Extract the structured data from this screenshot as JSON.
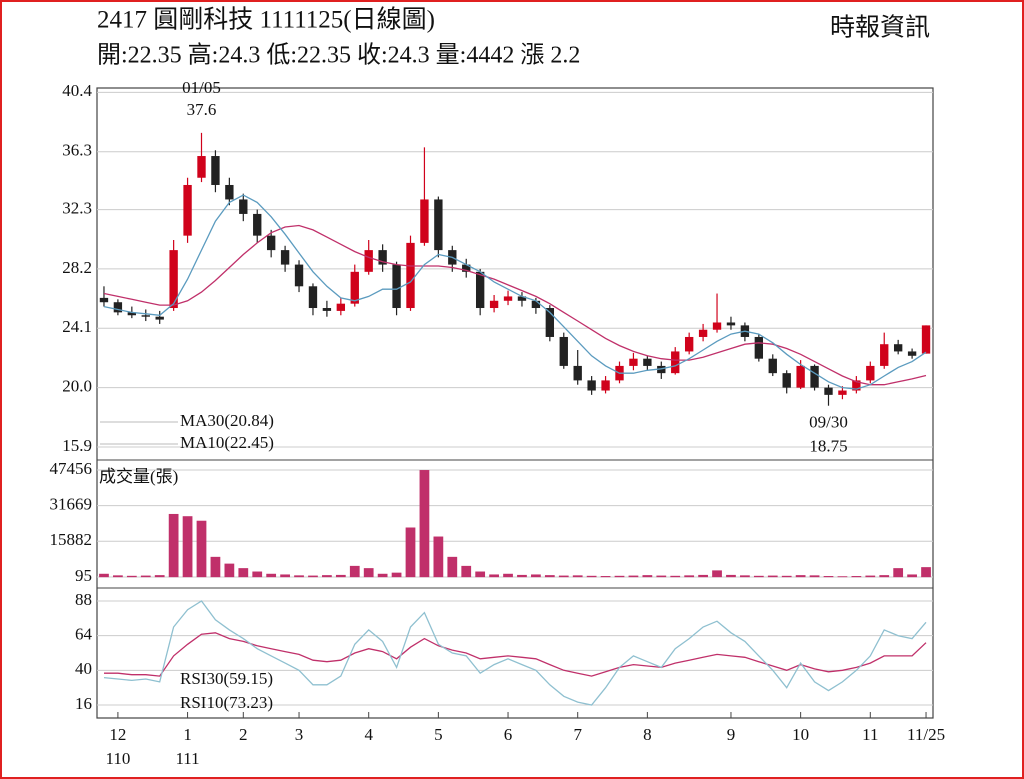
{
  "chart_data": [
    {
      "type": "candlestick",
      "title": "2417  圓剛科技 1111125(日線圖)",
      "subtitle": "開:22.35 高:24.3 低:22.35 收:24.3 量:4442 漲 2.2",
      "source": "時報資訊",
      "xlim": [
        -0.5,
        59.5
      ],
      "ylim": [
        15.0,
        40.7
      ],
      "yticks": [
        15.9,
        {
          "value": 20,
          "label": "20.0"
        },
        24.1,
        28.2,
        32.3,
        36.3,
        40.4
      ],
      "grid": true,
      "up_color": "#d0021b",
      "down_color": "#222222",
      "candles": [
        [
          26.2,
          27.0,
          25.6,
          25.9
        ],
        [
          25.9,
          26.1,
          25.0,
          25.2
        ],
        [
          25.2,
          25.6,
          24.8,
          25.0
        ],
        [
          25.0,
          25.4,
          24.6,
          24.9
        ],
        [
          24.9,
          25.3,
          24.4,
          24.7
        ],
        [
          25.5,
          30.2,
          25.3,
          29.5
        ],
        [
          30.5,
          34.5,
          30.0,
          34.0
        ],
        [
          34.5,
          37.6,
          34.2,
          36.0
        ],
        [
          36.0,
          36.4,
          33.5,
          34.0
        ],
        [
          34.0,
          34.5,
          32.6,
          33.0
        ],
        [
          33.0,
          33.4,
          31.5,
          32.0
        ],
        [
          32.0,
          32.3,
          30.0,
          30.5
        ],
        [
          30.5,
          30.9,
          29.0,
          29.5
        ],
        [
          29.5,
          29.8,
          28.0,
          28.5
        ],
        [
          28.5,
          28.8,
          26.6,
          27.0
        ],
        [
          27.0,
          27.2,
          25.0,
          25.5
        ],
        [
          25.5,
          26.0,
          24.9,
          25.3
        ],
        [
          25.3,
          26.2,
          25.0,
          25.8
        ],
        [
          25.8,
          28.5,
          25.6,
          28.0
        ],
        [
          28.0,
          30.2,
          27.8,
          29.5
        ],
        [
          29.5,
          29.9,
          28.0,
          28.5
        ],
        [
          28.5,
          28.7,
          25.0,
          25.5
        ],
        [
          25.5,
          30.5,
          25.3,
          30.0
        ],
        [
          30.0,
          36.6,
          29.8,
          33.0
        ],
        [
          33.0,
          33.2,
          29.0,
          29.5
        ],
        [
          29.5,
          29.8,
          28.0,
          28.5
        ],
        [
          28.5,
          28.9,
          27.6,
          28.0
        ],
        [
          28.0,
          28.2,
          25.0,
          25.5
        ],
        [
          25.5,
          26.4,
          25.2,
          26.0
        ],
        [
          26.0,
          26.7,
          25.7,
          26.3
        ],
        [
          26.3,
          26.6,
          25.6,
          26.0
        ],
        [
          26.0,
          26.2,
          25.1,
          25.5
        ],
        [
          25.5,
          25.7,
          23.2,
          23.5
        ],
        [
          23.5,
          23.8,
          21.3,
          21.5
        ],
        [
          21.5,
          22.6,
          20.2,
          20.5
        ],
        [
          20.5,
          20.8,
          19.5,
          19.8
        ],
        [
          19.8,
          20.8,
          19.6,
          20.5
        ],
        [
          20.5,
          21.8,
          20.3,
          21.5
        ],
        [
          21.5,
          22.4,
          21.2,
          22.0
        ],
        [
          22.0,
          22.2,
          21.2,
          21.5
        ],
        [
          21.5,
          21.8,
          20.6,
          21.0
        ],
        [
          21.0,
          22.8,
          20.9,
          22.5
        ],
        [
          22.5,
          23.8,
          22.3,
          23.5
        ],
        [
          23.5,
          24.4,
          23.2,
          24.0
        ],
        [
          24.0,
          26.5,
          23.8,
          24.5
        ],
        [
          24.5,
          24.9,
          24.0,
          24.3
        ],
        [
          24.3,
          24.5,
          23.2,
          23.5
        ],
        [
          23.5,
          23.7,
          21.8,
          22.0
        ],
        [
          22.0,
          22.3,
          20.8,
          21.0
        ],
        [
          21.0,
          21.2,
          19.6,
          20.0
        ],
        [
          20.0,
          21.9,
          19.9,
          21.5
        ],
        [
          21.5,
          21.6,
          19.8,
          20.0
        ],
        [
          20.0,
          20.2,
          18.75,
          19.5
        ],
        [
          19.5,
          20.1,
          19.2,
          19.8
        ],
        [
          19.8,
          20.8,
          19.6,
          20.5
        ],
        [
          20.5,
          21.8,
          20.3,
          21.5
        ],
        [
          21.5,
          23.8,
          21.3,
          23.0
        ],
        [
          23.0,
          23.3,
          22.3,
          22.5
        ],
        [
          22.5,
          22.7,
          22.0,
          22.2
        ],
        [
          22.35,
          24.3,
          22.35,
          24.3
        ]
      ],
      "series": [
        {
          "name": "MA30(20.84)",
          "color": "#c0306a",
          "values": [
            26.5,
            26.3,
            26.1,
            25.9,
            25.7,
            25.7,
            26.0,
            26.6,
            27.4,
            28.3,
            29.2,
            30.0,
            30.7,
            31.1,
            31.2,
            30.9,
            30.4,
            29.9,
            29.4,
            29.0,
            28.7,
            28.5,
            28.4,
            28.4,
            28.4,
            28.3,
            28.1,
            27.8,
            27.5,
            27.1,
            26.7,
            26.3,
            25.8,
            25.2,
            24.6,
            24.0,
            23.4,
            22.9,
            22.5,
            22.2,
            22.0,
            21.9,
            21.9,
            22.1,
            22.4,
            22.7,
            23.0,
            23.1,
            23.0,
            22.7,
            22.3,
            21.8,
            21.3,
            20.8,
            20.4,
            20.2,
            20.2,
            20.4,
            20.6,
            20.84
          ]
        },
        {
          "name": "MA10(22.45)",
          "color": "#5b9bbf",
          "values": [
            25.6,
            25.4,
            25.2,
            25.1,
            25.0,
            25.8,
            27.5,
            29.5,
            31.5,
            32.8,
            33.3,
            32.8,
            31.8,
            30.6,
            29.3,
            28.0,
            27.0,
            26.2,
            26.0,
            26.3,
            26.8,
            26.8,
            27.3,
            28.5,
            29.2,
            29.0,
            28.5,
            28.0,
            27.3,
            26.8,
            26.3,
            26.0,
            25.2,
            24.2,
            23.2,
            22.2,
            21.5,
            21.0,
            21.0,
            21.2,
            21.3,
            21.5,
            22.0,
            22.6,
            23.2,
            23.7,
            23.9,
            23.7,
            23.1,
            22.3,
            21.6,
            21.0,
            20.4,
            20.0,
            19.9,
            20.2,
            20.8,
            21.4,
            21.8,
            22.45
          ]
        }
      ],
      "high_annotation": {
        "date": "01/05",
        "value": 37.6
      },
      "low_annotation": {
        "date": "09/30",
        "value": 18.75
      }
    },
    {
      "type": "bar",
      "title": "成交量(張)",
      "color": "#c0306a",
      "ylim": [
        -4800,
        51900
      ],
      "yticks": [
        95,
        15882,
        31669,
        47456
      ],
      "grid": true,
      "values": [
        1500,
        800,
        600,
        700,
        900,
        28000,
        27000,
        25000,
        9000,
        6000,
        4000,
        2500,
        1500,
        1200,
        800,
        700,
        900,
        1000,
        5000,
        4000,
        1500,
        2000,
        22000,
        47456,
        18000,
        9000,
        5000,
        2500,
        1200,
        1500,
        1000,
        1200,
        900,
        700,
        800,
        600,
        500,
        600,
        700,
        900,
        700,
        600,
        800,
        1000,
        3000,
        1000,
        800,
        600,
        700,
        600,
        900,
        800,
        500,
        400,
        500,
        700,
        900,
        4000,
        1200,
        4442
      ]
    },
    {
      "type": "line",
      "ylim": [
        7,
        97
      ],
      "yticks": [
        16,
        40,
        64,
        88
      ],
      "grid": true,
      "xticks": [
        {
          "value": 1,
          "label": "12"
        },
        {
          "value": 6,
          "label": "1"
        },
        {
          "value": 10,
          "label": "2"
        },
        {
          "value": 14,
          "label": "3"
        },
        {
          "value": 19,
          "label": "4"
        },
        {
          "value": 24,
          "label": "5"
        },
        {
          "value": 29,
          "label": "6"
        },
        {
          "value": 34,
          "label": "7"
        },
        {
          "value": 39,
          "label": "8"
        },
        {
          "value": 45,
          "label": "9"
        },
        {
          "value": 50,
          "label": "10"
        },
        {
          "value": 55,
          "label": "11"
        },
        {
          "value": 59,
          "label": "11/25"
        }
      ],
      "xticks_year": [
        {
          "value": 1,
          "label": "110"
        },
        {
          "value": 6,
          "label": "111"
        }
      ],
      "series": [
        {
          "name": "RSI30(59.15)",
          "color": "#c0306a",
          "values": [
            38,
            38,
            37,
            37,
            36,
            50,
            58,
            65,
            66,
            62,
            60,
            57,
            55,
            53,
            51,
            47,
            46,
            47,
            52,
            55,
            53,
            48,
            56,
            62,
            57,
            54,
            52,
            48,
            49,
            50,
            49,
            48,
            44,
            40,
            38,
            36,
            39,
            42,
            44,
            43,
            42,
            45,
            47,
            49,
            51,
            50,
            49,
            46,
            43,
            40,
            44,
            41,
            39,
            40,
            42,
            45,
            50,
            50,
            50,
            59.15
          ]
        },
        {
          "name": "RSI10(73.23)",
          "color": "#8fc0d0",
          "values": [
            35,
            34,
            33,
            34,
            32,
            70,
            82,
            88,
            75,
            68,
            62,
            55,
            50,
            45,
            40,
            30,
            30,
            36,
            58,
            68,
            60,
            42,
            70,
            80,
            58,
            52,
            50,
            38,
            44,
            48,
            44,
            40,
            30,
            22,
            18,
            16,
            28,
            42,
            50,
            46,
            42,
            55,
            62,
            70,
            74,
            66,
            60,
            50,
            40,
            28,
            45,
            32,
            26,
            32,
            40,
            50,
            68,
            64,
            62,
            73.23
          ]
        }
      ]
    }
  ]
}
